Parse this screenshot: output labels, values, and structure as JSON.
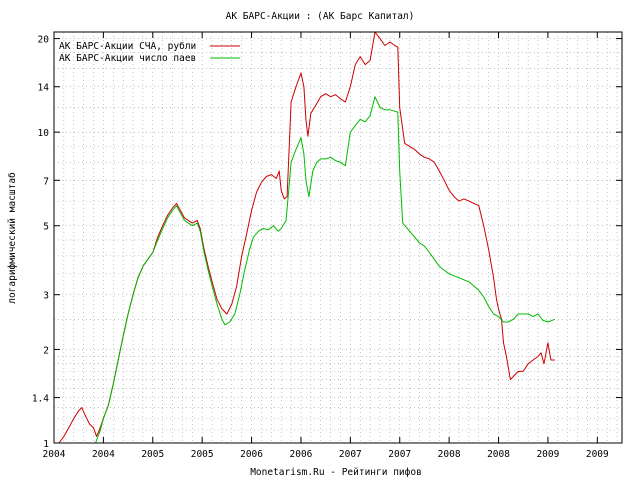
{
  "chart_data": {
    "type": "line",
    "title": "АК БАРС-Акции : (АК Барс Капитал)",
    "xlabel": "Monetarism.Ru - Рейтинги пифов",
    "ylabel": "логарифмический масштаб",
    "yscale": "log",
    "ylim": [
      1,
      21
    ],
    "xlim": [
      2004.0,
      2009.75
    ],
    "yticks": [
      1,
      1.4,
      2,
      3,
      5,
      7,
      10,
      14,
      20
    ],
    "xticks": [
      {
        "pos": 2004.0,
        "label": "2004"
      },
      {
        "pos": 2004.5,
        "label": "2004"
      },
      {
        "pos": 2005.0,
        "label": "2005"
      },
      {
        "pos": 2005.5,
        "label": "2005"
      },
      {
        "pos": 2006.0,
        "label": "2006"
      },
      {
        "pos": 2006.5,
        "label": "2006"
      },
      {
        "pos": 2007.0,
        "label": "2007"
      },
      {
        "pos": 2007.5,
        "label": "2007"
      },
      {
        "pos": 2008.0,
        "label": "2008"
      },
      {
        "pos": 2008.5,
        "label": "2008"
      },
      {
        "pos": 2009.0,
        "label": "2009"
      },
      {
        "pos": 2009.5,
        "label": "2009"
      }
    ],
    "grid": true,
    "legend_position": "top-left",
    "series": [
      {
        "name": "АК БАРС-Акции СЧА, рубли",
        "color": "#cc0000",
        "points": [
          [
            2004.05,
            1.0
          ],
          [
            2004.1,
            1.05
          ],
          [
            2004.15,
            1.12
          ],
          [
            2004.2,
            1.2
          ],
          [
            2004.25,
            1.27
          ],
          [
            2004.28,
            1.3
          ],
          [
            2004.32,
            1.22
          ],
          [
            2004.36,
            1.15
          ],
          [
            2004.4,
            1.12
          ],
          [
            2004.43,
            1.05
          ],
          [
            2004.46,
            1.1
          ],
          [
            2004.5,
            1.2
          ],
          [
            2004.55,
            1.32
          ],
          [
            2004.6,
            1.55
          ],
          [
            2004.65,
            1.85
          ],
          [
            2004.7,
            2.2
          ],
          [
            2004.75,
            2.6
          ],
          [
            2004.8,
            3.0
          ],
          [
            2004.85,
            3.4
          ],
          [
            2004.9,
            3.7
          ],
          [
            2004.95,
            3.9
          ],
          [
            2005.0,
            4.1
          ],
          [
            2005.05,
            4.6
          ],
          [
            2005.1,
            5.0
          ],
          [
            2005.15,
            5.4
          ],
          [
            2005.2,
            5.7
          ],
          [
            2005.24,
            5.9
          ],
          [
            2005.28,
            5.6
          ],
          [
            2005.32,
            5.3
          ],
          [
            2005.36,
            5.2
          ],
          [
            2005.4,
            5.1
          ],
          [
            2005.45,
            5.2
          ],
          [
            2005.48,
            4.9
          ],
          [
            2005.52,
            4.2
          ],
          [
            2005.56,
            3.7
          ],
          [
            2005.6,
            3.3
          ],
          [
            2005.65,
            2.9
          ],
          [
            2005.7,
            2.7
          ],
          [
            2005.75,
            2.6
          ],
          [
            2005.8,
            2.8
          ],
          [
            2005.85,
            3.2
          ],
          [
            2005.9,
            4.0
          ],
          [
            2005.95,
            4.7
          ],
          [
            2006.0,
            5.6
          ],
          [
            2006.05,
            6.4
          ],
          [
            2006.1,
            6.9
          ],
          [
            2006.15,
            7.2
          ],
          [
            2006.2,
            7.3
          ],
          [
            2006.25,
            7.1
          ],
          [
            2006.28,
            7.5
          ],
          [
            2006.3,
            6.5
          ],
          [
            2006.33,
            6.1
          ],
          [
            2006.36,
            6.2
          ],
          [
            2006.4,
            12.5
          ],
          [
            2006.45,
            14.0
          ],
          [
            2006.5,
            15.5
          ],
          [
            2006.53,
            14.0
          ],
          [
            2006.55,
            11.0
          ],
          [
            2006.57,
            9.7
          ],
          [
            2006.6,
            11.5
          ],
          [
            2006.65,
            12.2
          ],
          [
            2006.7,
            13.0
          ],
          [
            2006.75,
            13.3
          ],
          [
            2006.8,
            13.0
          ],
          [
            2006.85,
            13.2
          ],
          [
            2006.9,
            12.8
          ],
          [
            2006.95,
            12.5
          ],
          [
            2007.0,
            14.0
          ],
          [
            2007.05,
            16.5
          ],
          [
            2007.1,
            17.5
          ],
          [
            2007.15,
            16.5
          ],
          [
            2007.2,
            17.0
          ],
          [
            2007.25,
            21.0
          ],
          [
            2007.3,
            20.0
          ],
          [
            2007.35,
            19.0
          ],
          [
            2007.4,
            19.5
          ],
          [
            2007.45,
            19.0
          ],
          [
            2007.48,
            18.8
          ],
          [
            2007.5,
            12.0
          ],
          [
            2007.55,
            9.2
          ],
          [
            2007.6,
            9.0
          ],
          [
            2007.65,
            8.8
          ],
          [
            2007.7,
            8.5
          ],
          [
            2007.75,
            8.3
          ],
          [
            2007.8,
            8.2
          ],
          [
            2007.85,
            8.0
          ],
          [
            2007.9,
            7.5
          ],
          [
            2007.95,
            7.0
          ],
          [
            2008.0,
            6.5
          ],
          [
            2008.05,
            6.2
          ],
          [
            2008.1,
            6.0
          ],
          [
            2008.15,
            6.1
          ],
          [
            2008.2,
            6.0
          ],
          [
            2008.25,
            5.9
          ],
          [
            2008.3,
            5.8
          ],
          [
            2008.35,
            5.0
          ],
          [
            2008.4,
            4.2
          ],
          [
            2008.45,
            3.4
          ],
          [
            2008.48,
            2.9
          ],
          [
            2008.5,
            2.7
          ],
          [
            2008.53,
            2.5
          ],
          [
            2008.55,
            2.1
          ],
          [
            2008.58,
            1.9
          ],
          [
            2008.62,
            1.6
          ],
          [
            2008.66,
            1.65
          ],
          [
            2008.7,
            1.7
          ],
          [
            2008.75,
            1.7
          ],
          [
            2008.8,
            1.8
          ],
          [
            2008.85,
            1.85
          ],
          [
            2008.9,
            1.9
          ],
          [
            2008.93,
            1.95
          ],
          [
            2008.96,
            1.8
          ],
          [
            2009.0,
            2.1
          ],
          [
            2009.03,
            1.85
          ],
          [
            2009.07,
            1.85
          ]
        ]
      },
      {
        "name": "АК БАРС-Акции число паев",
        "color": "#00bb00",
        "points": [
          [
            2004.42,
            1.0
          ],
          [
            2004.47,
            1.1
          ],
          [
            2004.5,
            1.2
          ],
          [
            2004.55,
            1.32
          ],
          [
            2004.6,
            1.55
          ],
          [
            2004.65,
            1.85
          ],
          [
            2004.7,
            2.2
          ],
          [
            2004.75,
            2.6
          ],
          [
            2004.8,
            3.0
          ],
          [
            2004.85,
            3.4
          ],
          [
            2004.9,
            3.7
          ],
          [
            2004.95,
            3.9
          ],
          [
            2005.0,
            4.1
          ],
          [
            2005.05,
            4.5
          ],
          [
            2005.1,
            4.9
          ],
          [
            2005.15,
            5.3
          ],
          [
            2005.2,
            5.6
          ],
          [
            2005.24,
            5.8
          ],
          [
            2005.28,
            5.5
          ],
          [
            2005.32,
            5.2
          ],
          [
            2005.36,
            5.1
          ],
          [
            2005.4,
            5.0
          ],
          [
            2005.45,
            5.1
          ],
          [
            2005.48,
            4.8
          ],
          [
            2005.52,
            4.1
          ],
          [
            2005.56,
            3.6
          ],
          [
            2005.6,
            3.2
          ],
          [
            2005.65,
            2.8
          ],
          [
            2005.7,
            2.5
          ],
          [
            2005.73,
            2.4
          ],
          [
            2005.78,
            2.45
          ],
          [
            2005.83,
            2.6
          ],
          [
            2005.88,
            3.0
          ],
          [
            2005.93,
            3.6
          ],
          [
            2005.98,
            4.2
          ],
          [
            2006.02,
            4.6
          ],
          [
            2006.07,
            4.8
          ],
          [
            2006.12,
            4.9
          ],
          [
            2006.17,
            4.85
          ],
          [
            2006.22,
            5.0
          ],
          [
            2006.27,
            4.8
          ],
          [
            2006.3,
            4.9
          ],
          [
            2006.35,
            5.2
          ],
          [
            2006.4,
            8.0
          ],
          [
            2006.45,
            8.8
          ],
          [
            2006.5,
            9.6
          ],
          [
            2006.53,
            8.5
          ],
          [
            2006.55,
            7.0
          ],
          [
            2006.58,
            6.2
          ],
          [
            2006.62,
            7.5
          ],
          [
            2006.66,
            8.0
          ],
          [
            2006.7,
            8.2
          ],
          [
            2006.75,
            8.2
          ],
          [
            2006.8,
            8.3
          ],
          [
            2006.85,
            8.1
          ],
          [
            2006.9,
            8.0
          ],
          [
            2006.95,
            7.8
          ],
          [
            2007.0,
            10.0
          ],
          [
            2007.05,
            10.5
          ],
          [
            2007.1,
            11.0
          ],
          [
            2007.15,
            10.8
          ],
          [
            2007.2,
            11.3
          ],
          [
            2007.25,
            13.0
          ],
          [
            2007.3,
            12.0
          ],
          [
            2007.35,
            11.8
          ],
          [
            2007.4,
            11.8
          ],
          [
            2007.48,
            11.6
          ],
          [
            2007.5,
            7.5
          ],
          [
            2007.53,
            5.1
          ],
          [
            2007.6,
            4.8
          ],
          [
            2007.65,
            4.6
          ],
          [
            2007.7,
            4.4
          ],
          [
            2007.75,
            4.3
          ],
          [
            2007.8,
            4.1
          ],
          [
            2007.85,
            3.9
          ],
          [
            2007.9,
            3.7
          ],
          [
            2007.95,
            3.6
          ],
          [
            2008.0,
            3.5
          ],
          [
            2008.05,
            3.45
          ],
          [
            2008.1,
            3.4
          ],
          [
            2008.15,
            3.35
          ],
          [
            2008.2,
            3.3
          ],
          [
            2008.25,
            3.2
          ],
          [
            2008.3,
            3.1
          ],
          [
            2008.35,
            2.95
          ],
          [
            2008.4,
            2.75
          ],
          [
            2008.45,
            2.6
          ],
          [
            2008.5,
            2.55
          ],
          [
            2008.55,
            2.45
          ],
          [
            2008.6,
            2.45
          ],
          [
            2008.65,
            2.5
          ],
          [
            2008.7,
            2.6
          ],
          [
            2008.75,
            2.6
          ],
          [
            2008.8,
            2.6
          ],
          [
            2008.85,
            2.55
          ],
          [
            2008.9,
            2.6
          ],
          [
            2008.95,
            2.48
          ],
          [
            2009.0,
            2.45
          ],
          [
            2009.07,
            2.5
          ]
        ]
      }
    ]
  }
}
